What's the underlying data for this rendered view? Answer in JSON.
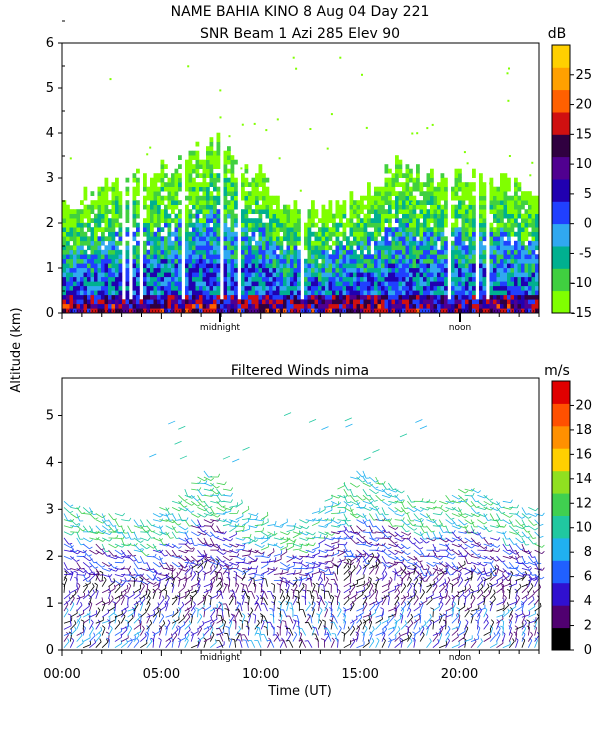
{
  "figure": {
    "title_line1": "NAME BAHIA KINO    8 Aug 04 Day 221",
    "title_line2": "SNR Beam 1 Azi 285 Elev 90",
    "shared_ylabel": "Altitude (km)",
    "xlabel": "Time (UT)",
    "x_ticks": [
      "00:00",
      "05:00",
      "10:00",
      "15:00",
      "20:00"
    ],
    "x_tick_values": [
      0,
      5,
      10,
      15,
      20
    ],
    "top_markers": [
      "midnight",
      "noon"
    ],
    "bottom_markers": [
      "midnight",
      "noon"
    ]
  },
  "chart_data": [
    {
      "type": "heatmap",
      "panel": "snr",
      "title": "",
      "ylabel": "Altitude (km)",
      "xlim": [
        0,
        24
      ],
      "ylim": [
        0,
        6
      ],
      "y_ticks": [
        "0",
        "1",
        "2",
        "3",
        "4",
        "5",
        "6"
      ],
      "colorbar": {
        "unit": "dB",
        "ticks": [
          "-15",
          "-10",
          "-5",
          "0",
          "5",
          "10",
          "15",
          "20",
          "25"
        ],
        "colors": [
          "#80ff00",
          "#40d040",
          "#00b090",
          "#30a8f0",
          "#2040ff",
          "#2000b0",
          "#500090",
          "#300040",
          "#d01010",
          "#ff6000",
          "#ffa000",
          "#ffd000"
        ]
      },
      "echo_top_km": [
        {
          "t": 0.1,
          "h": 2.4
        },
        {
          "t": 1,
          "h": 2.6
        },
        {
          "t": 2,
          "h": 2.9
        },
        {
          "t": 3,
          "h": 3.0
        },
        {
          "t": 4,
          "h": 3.0
        },
        {
          "t": 5,
          "h": 3.2
        },
        {
          "t": 6,
          "h": 3.4
        },
        {
          "t": 7,
          "h": 3.6
        },
        {
          "t": 8,
          "h": 3.9
        },
        {
          "t": 9,
          "h": 3.2
        },
        {
          "t": 10,
          "h": 3.0
        },
        {
          "t": 11,
          "h": 2.5
        },
        {
          "t": 12,
          "h": 2.3
        },
        {
          "t": 13,
          "h": 2.2
        },
        {
          "t": 14,
          "h": 2.4
        },
        {
          "t": 15,
          "h": 2.6
        },
        {
          "t": 16,
          "h": 3.0
        },
        {
          "t": 17,
          "h": 3.4
        },
        {
          "t": 18,
          "h": 3.1
        },
        {
          "t": 19,
          "h": 2.9
        },
        {
          "t": 20,
          "h": 3.0
        },
        {
          "t": 21,
          "h": 3.1
        },
        {
          "t": 22,
          "h": 3.0
        },
        {
          "t": 23,
          "h": 2.8
        },
        {
          "t": 23.9,
          "h": 2.6
        }
      ]
    },
    {
      "type": "scatter",
      "panel": "winds",
      "title": "Filtered Winds nima",
      "xlabel": "Time (UT)",
      "xlim": [
        0,
        24
      ],
      "ylim": [
        0,
        5.8
      ],
      "y_ticks": [
        "0",
        "1",
        "2",
        "3",
        "4",
        "5"
      ],
      "x_ticks": [
        "00:00",
        "05:00",
        "10:00",
        "15:00",
        "20:00"
      ],
      "colorbar": {
        "unit": "m/s",
        "ticks": [
          "0",
          "2",
          "4",
          "6",
          "8",
          "10",
          "12",
          "14",
          "16",
          "18",
          "20"
        ],
        "colors": [
          "#000000",
          "#500070",
          "#3010d0",
          "#2060ff",
          "#20b0f0",
          "#20c8a0",
          "#40d050",
          "#90e020",
          "#ffd000",
          "#ff9000",
          "#ff5000",
          "#e00000"
        ]
      },
      "wind_top_km": [
        {
          "t": 0.1,
          "h": 3.2
        },
        {
          "t": 2,
          "h": 3.0
        },
        {
          "t": 4,
          "h": 2.8
        },
        {
          "t": 6,
          "h": 3.4
        },
        {
          "t": 7,
          "h": 3.9
        },
        {
          "t": 8,
          "h": 3.5
        },
        {
          "t": 9,
          "h": 3.0
        },
        {
          "t": 10,
          "h": 2.8
        },
        {
          "t": 11,
          "h": 2.7
        },
        {
          "t": 12,
          "h": 2.8
        },
        {
          "t": 13,
          "h": 3.1
        },
        {
          "t": 14,
          "h": 3.6
        },
        {
          "t": 15,
          "h": 3.9
        },
        {
          "t": 16,
          "h": 3.7
        },
        {
          "t": 17,
          "h": 3.4
        },
        {
          "t": 18,
          "h": 3.2
        },
        {
          "t": 19,
          "h": 3.3
        },
        {
          "t": 20,
          "h": 3.5
        },
        {
          "t": 21,
          "h": 3.4
        },
        {
          "t": 22,
          "h": 3.2
        },
        {
          "t": 23.9,
          "h": 3.0
        }
      ]
    }
  ]
}
